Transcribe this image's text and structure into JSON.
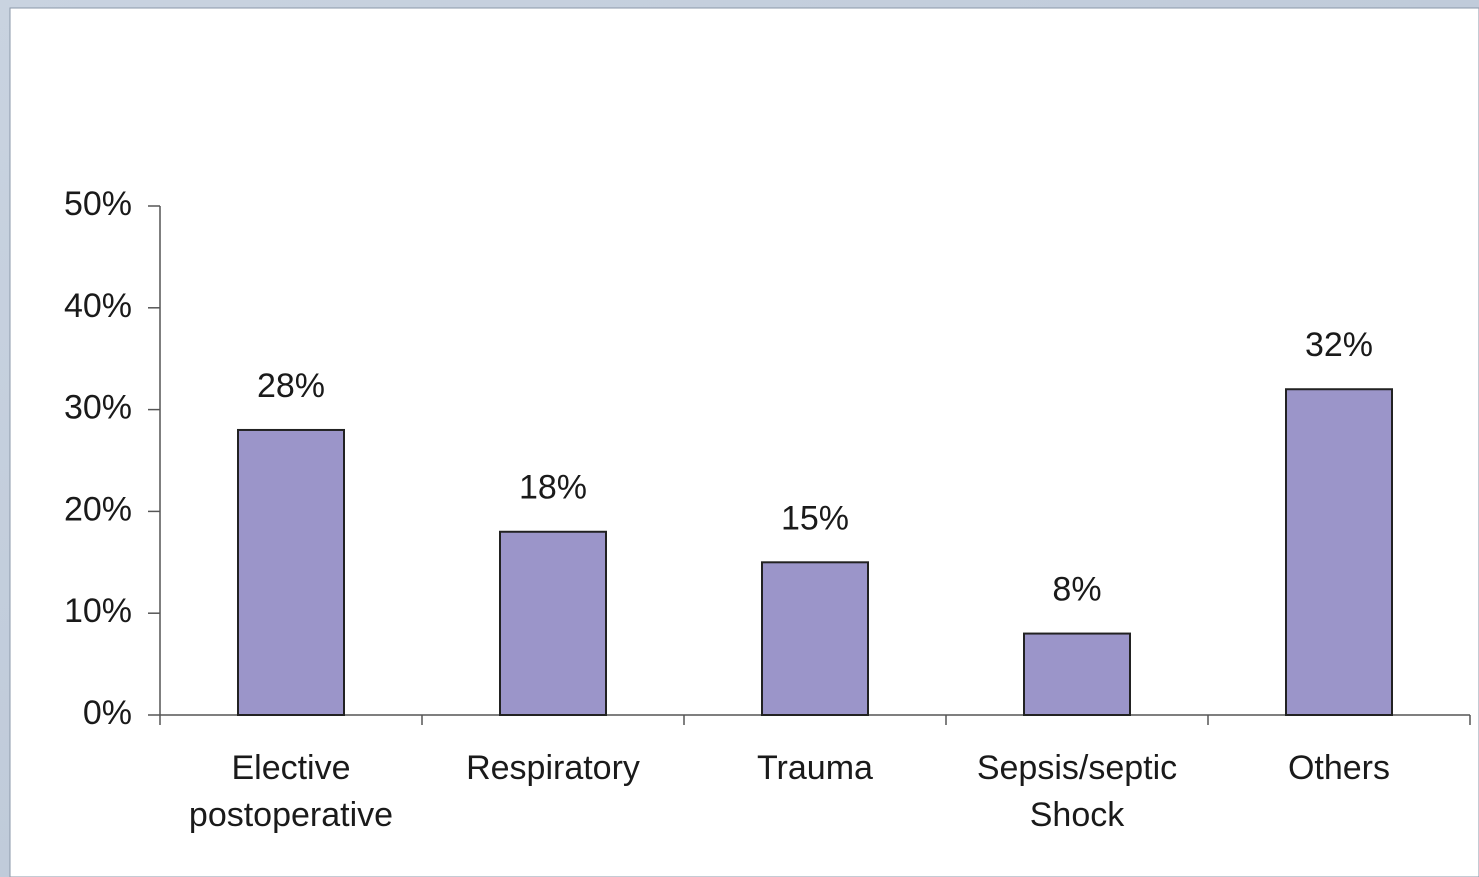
{
  "chart_data": {
    "type": "bar",
    "categories": [
      "Elective postoperative",
      "Respiratory",
      "Trauma",
      "Sepsis/septic Shock",
      "Others"
    ],
    "values": [
      28,
      18,
      15,
      8,
      32
    ],
    "value_labels": [
      "28%",
      "18%",
      "15%",
      "8%",
      "32%"
    ],
    "color": "#9b95c9",
    "ylim": [
      0,
      50
    ],
    "yticks": [
      {
        "value": 0,
        "label": "0%"
      },
      {
        "value": 10,
        "label": "10%"
      },
      {
        "value": 20,
        "label": "20%"
      },
      {
        "value": 30,
        "label": "30%"
      },
      {
        "value": 40,
        "label": "40%"
      },
      {
        "value": 50,
        "label": "50%"
      }
    ],
    "grid": false
  }
}
